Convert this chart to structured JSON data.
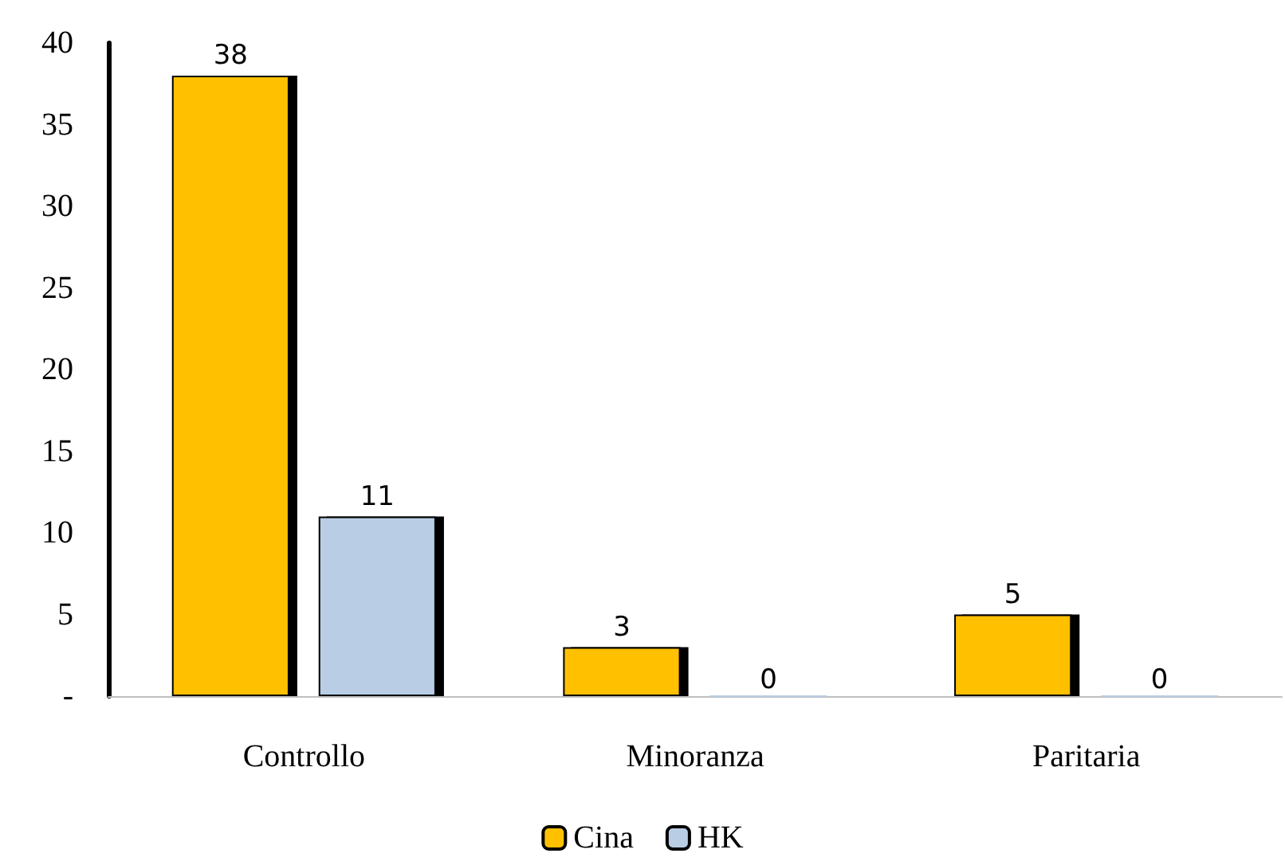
{
  "chart_data": {
    "type": "bar",
    "categories": [
      "Controllo",
      "Minoranza",
      "Paritaria"
    ],
    "series": [
      {
        "name": "Cina",
        "color": "#ffc000",
        "values": [
          38,
          3,
          5
        ]
      },
      {
        "name": "HK",
        "color": "#b9cde5",
        "values": [
          11,
          0,
          0
        ]
      }
    ],
    "ylim": [
      0,
      40
    ],
    "yticks": [
      {
        "value": 0,
        "label": "-"
      },
      5,
      10,
      15,
      20,
      25,
      30,
      35,
      40
    ],
    "grid": false,
    "legend": "bottom",
    "data_labels": true
  }
}
